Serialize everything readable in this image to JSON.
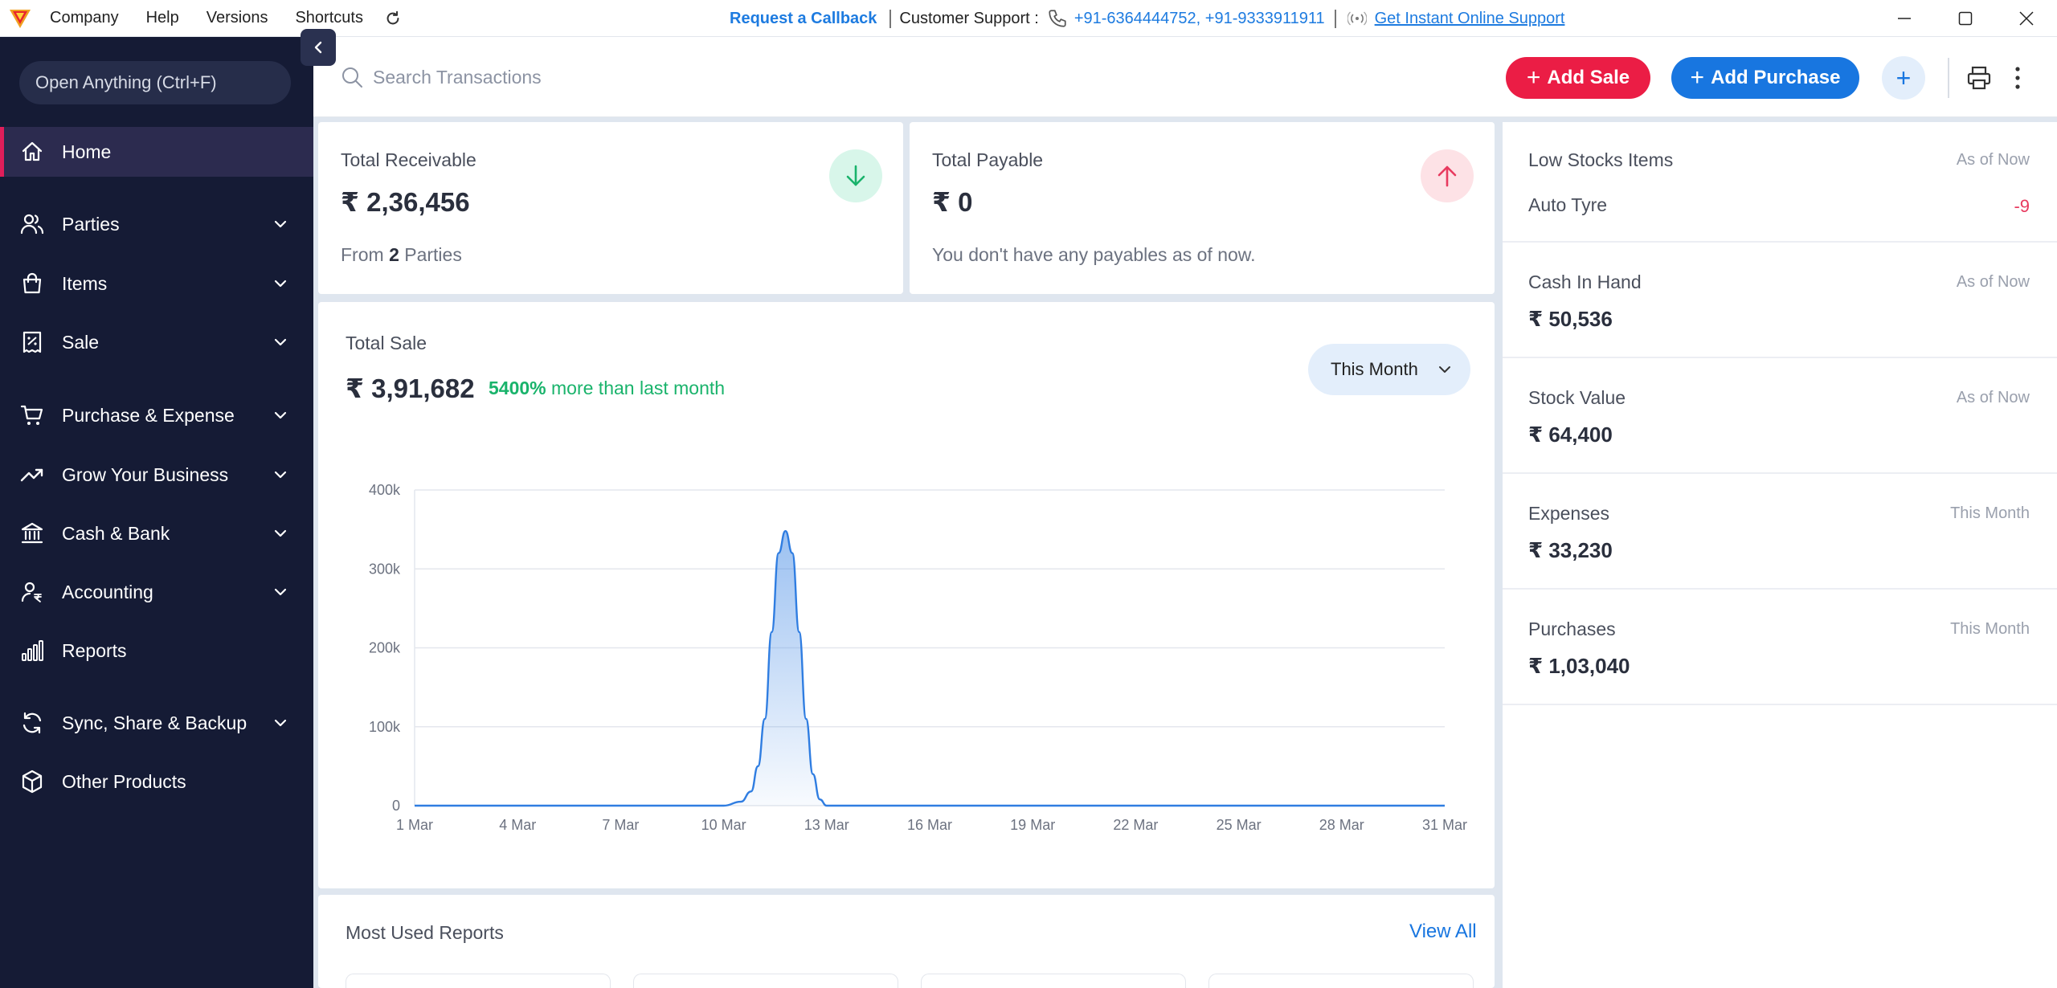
{
  "menubar": {
    "items": [
      "Company",
      "Help",
      "Versions",
      "Shortcuts"
    ],
    "request_callback": "Request a Callback",
    "support_label": "Customer Support :",
    "support_phones": "+91-6364444752, +91-9333911911",
    "online_support": "Get Instant Online Support"
  },
  "sidebar": {
    "open_anything": "Open Anything (Ctrl+F)",
    "items": [
      {
        "label": "Home",
        "icon": "home-icon",
        "expandable": false,
        "active": true
      },
      {
        "label": "Parties",
        "icon": "users-icon",
        "expandable": true
      },
      {
        "label": "Items",
        "icon": "bag-icon",
        "expandable": true
      },
      {
        "label": "Sale",
        "icon": "receipt-icon",
        "expandable": true
      },
      {
        "label": "Purchase & Expense",
        "icon": "cart-icon",
        "expandable": true
      },
      {
        "label": "Grow Your Business",
        "icon": "trend-up-icon",
        "expandable": true
      },
      {
        "label": "Cash & Bank",
        "icon": "bank-icon",
        "expandable": true
      },
      {
        "label": "Accounting",
        "icon": "user-rupee-icon",
        "expandable": true
      },
      {
        "label": "Reports",
        "icon": "bar-chart-icon",
        "expandable": false
      },
      {
        "label": "Sync, Share & Backup",
        "icon": "sync-icon",
        "expandable": true
      },
      {
        "label": "Other Products",
        "icon": "cube-icon",
        "expandable": false
      }
    ]
  },
  "actionbar": {
    "search_placeholder": "Search Transactions",
    "add_sale": "Add Sale",
    "add_purchase": "Add Purchase"
  },
  "receivable": {
    "title": "Total Receivable",
    "amount": "₹ 2,36,456",
    "from_prefix": "From",
    "parties_count": "2",
    "parties_suffix": "Parties"
  },
  "payable": {
    "title": "Total Payable",
    "amount": "₹ 0",
    "note": "You don't have any payables as of now."
  },
  "sale": {
    "title": "Total Sale",
    "amount": "₹ 3,91,682",
    "growth_pct": "5400%",
    "growth_text": "more than last month",
    "period": "This Month"
  },
  "chart_data": {
    "type": "area",
    "title": "",
    "xlabel": "",
    "ylabel": "",
    "ylim": [
      0,
      400000
    ],
    "yticks": [
      "0",
      "100k",
      "200k",
      "300k",
      "400k"
    ],
    "xticks": [
      "1 Mar",
      "4 Mar",
      "7 Mar",
      "10 Mar",
      "13 Mar",
      "16 Mar",
      "19 Mar",
      "22 Mar",
      "25 Mar",
      "28 Mar",
      "31 Mar"
    ],
    "x": [
      1,
      10,
      10.5,
      10.8,
      11,
      11.2,
      11.4,
      11.6,
      11.8,
      12,
      12.2,
      12.4,
      12.6,
      12.8,
      13,
      31
    ],
    "values": [
      0,
      0,
      5000,
      18000,
      50000,
      110000,
      220000,
      320000,
      348000,
      320000,
      220000,
      110000,
      40000,
      8000,
      0,
      0
    ],
    "grid": true,
    "legend": "none"
  },
  "reports": {
    "title": "Most Used Reports",
    "view_all": "View All"
  },
  "right_panel": {
    "low_stock_title": "Low Stocks Items",
    "low_stock_period": "As of Now",
    "low_stock_item": "Auto Tyre",
    "low_stock_qty": "-9",
    "cash_title": "Cash In Hand",
    "cash_period": "As of Now",
    "cash_amount": "₹ 50,536",
    "stock_title": "Stock Value",
    "stock_period": "As of Now",
    "stock_amount": "₹ 64,400",
    "expenses_title": "Expenses",
    "expenses_period": "This Month",
    "expenses_amount": "₹ 33,230",
    "purchases_title": "Purchases",
    "purchases_period": "This Month",
    "purchases_amount": "₹ 1,03,040"
  },
  "colors": {
    "sidebar_bg": "#151b35",
    "active_accent": "#e01e5a",
    "sale_button": "#eb1d45",
    "purchase_button": "#1876e0",
    "growth_green": "#19b36b",
    "negative_red": "#e83a5f",
    "chart_line": "#2f7de1"
  }
}
